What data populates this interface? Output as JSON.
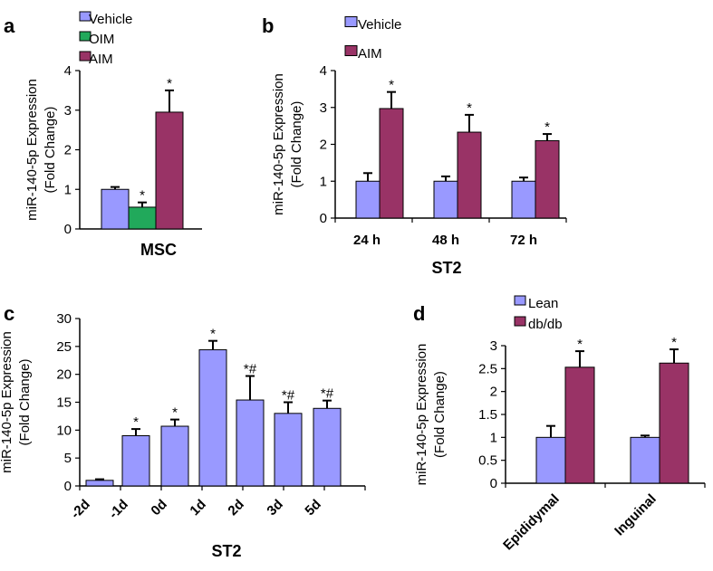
{
  "chart_data": [
    {
      "panel": "a",
      "type": "bar",
      "title": "MSC",
      "ylabel": "miR-140-5p Expression\n(Fold Change)",
      "ylim": [
        0,
        4
      ],
      "yticks": [
        0,
        1,
        2,
        3,
        4
      ],
      "categories": [
        "MSC"
      ],
      "show_category_labels": false,
      "series": [
        {
          "name": "Vehicle",
          "color": "#9999ff",
          "values": [
            1.0
          ],
          "errors": [
            0.06
          ],
          "annotations": [
            ""
          ]
        },
        {
          "name": "OIM",
          "color": "#21a95b",
          "values": [
            0.55
          ],
          "errors": [
            0.12
          ],
          "annotations": [
            "*"
          ]
        },
        {
          "name": "AIM",
          "color": "#993366",
          "values": [
            2.95
          ],
          "errors": [
            0.55
          ],
          "annotations": [
            "*"
          ]
        }
      ],
      "legend": "top-left"
    },
    {
      "panel": "b",
      "type": "bar",
      "title": "ST2",
      "ylabel": "miR-140-5p Expression\n(Fold Change)",
      "ylim": [
        0,
        4
      ],
      "yticks": [
        0,
        1,
        2,
        3,
        4
      ],
      "categories": [
        "24 h",
        "48 h",
        "72 h"
      ],
      "show_category_labels": true,
      "series": [
        {
          "name": "Vehicle",
          "color": "#9999ff",
          "values": [
            1.0,
            1.0,
            1.0
          ],
          "errors": [
            0.22,
            0.13,
            0.1
          ],
          "annotations": [
            "",
            "",
            ""
          ]
        },
        {
          "name": "AIM",
          "color": "#993366",
          "values": [
            2.97,
            2.33,
            2.1
          ],
          "errors": [
            0.45,
            0.47,
            0.18
          ],
          "annotations": [
            "*",
            "*",
            "*"
          ]
        }
      ],
      "legend": "top-left"
    },
    {
      "panel": "c",
      "type": "bar",
      "title": "ST2",
      "ylabel": "miR-140-5p Expression\n(Fold Change)",
      "ylim": [
        0,
        30
      ],
      "yticks": [
        0,
        5,
        10,
        15,
        20,
        25,
        30
      ],
      "categories": [
        "-2d",
        "-1d",
        "0d",
        "1d",
        "2d",
        "3d",
        "5d"
      ],
      "show_category_labels": true,
      "series": [
        {
          "name": "",
          "color": "#9999ff",
          "values": [
            1.0,
            9.0,
            10.7,
            24.4,
            15.4,
            13.0,
            13.9
          ],
          "errors": [
            0.2,
            1.2,
            1.2,
            1.6,
            4.3,
            2.0,
            1.4
          ],
          "annotations": [
            "",
            "*",
            "*",
            "*",
            "*#",
            "*#",
            "*#"
          ]
        }
      ],
      "legend": "none"
    },
    {
      "panel": "d",
      "type": "bar",
      "title": "",
      "ylabel": "miR-140-5p Expression\n(Fold Change)",
      "ylim": [
        0,
        3
      ],
      "yticks": [
        "0",
        "0.5",
        "1",
        "1.5",
        "2",
        "2.5",
        "3"
      ],
      "categories": [
        "Epididymal",
        "Inguinal"
      ],
      "show_category_labels": true,
      "series": [
        {
          "name": "Lean",
          "color": "#9999ff",
          "values": [
            1.0,
            1.0
          ],
          "errors": [
            0.25,
            0.04
          ],
          "annotations": [
            "",
            ""
          ]
        },
        {
          "name": "db/db",
          "color": "#993366",
          "values": [
            2.53,
            2.62
          ],
          "errors": [
            0.35,
            0.3
          ],
          "annotations": [
            "*",
            "*"
          ]
        }
      ],
      "legend": "top-left"
    }
  ]
}
